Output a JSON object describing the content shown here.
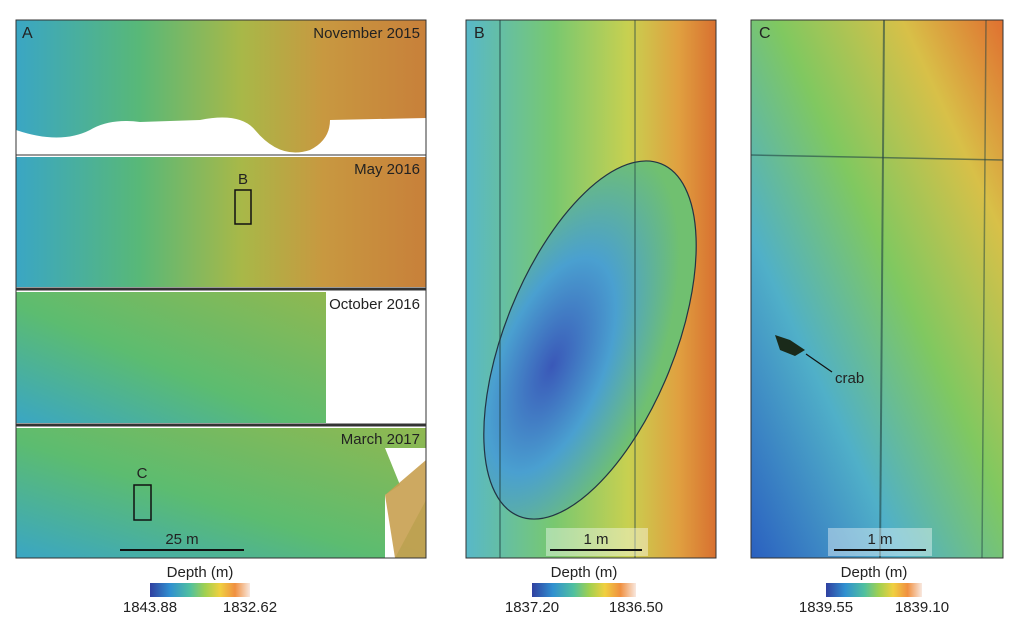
{
  "panels": [
    {
      "label": "A",
      "subpanels": [
        {
          "title": "November 2015"
        },
        {
          "title": "May 2016"
        },
        {
          "title": "October 2016"
        },
        {
          "title": "March 2017"
        }
      ],
      "boxes": [
        "B",
        "C"
      ],
      "scale_bar": "25 m",
      "colorbar": {
        "title": "Depth (m)",
        "min": "1843.88",
        "max": "1832.62"
      }
    },
    {
      "label": "B",
      "scale_bar": "1 m",
      "colorbar": {
        "title": "Depth (m)",
        "min": "1837.20",
        "max": "1836.50"
      }
    },
    {
      "label": "C",
      "annotation": "crab",
      "scale_bar": "1 m",
      "colorbar": {
        "title": "Depth (m)",
        "min": "1839.55",
        "max": "1839.10"
      }
    }
  ]
}
